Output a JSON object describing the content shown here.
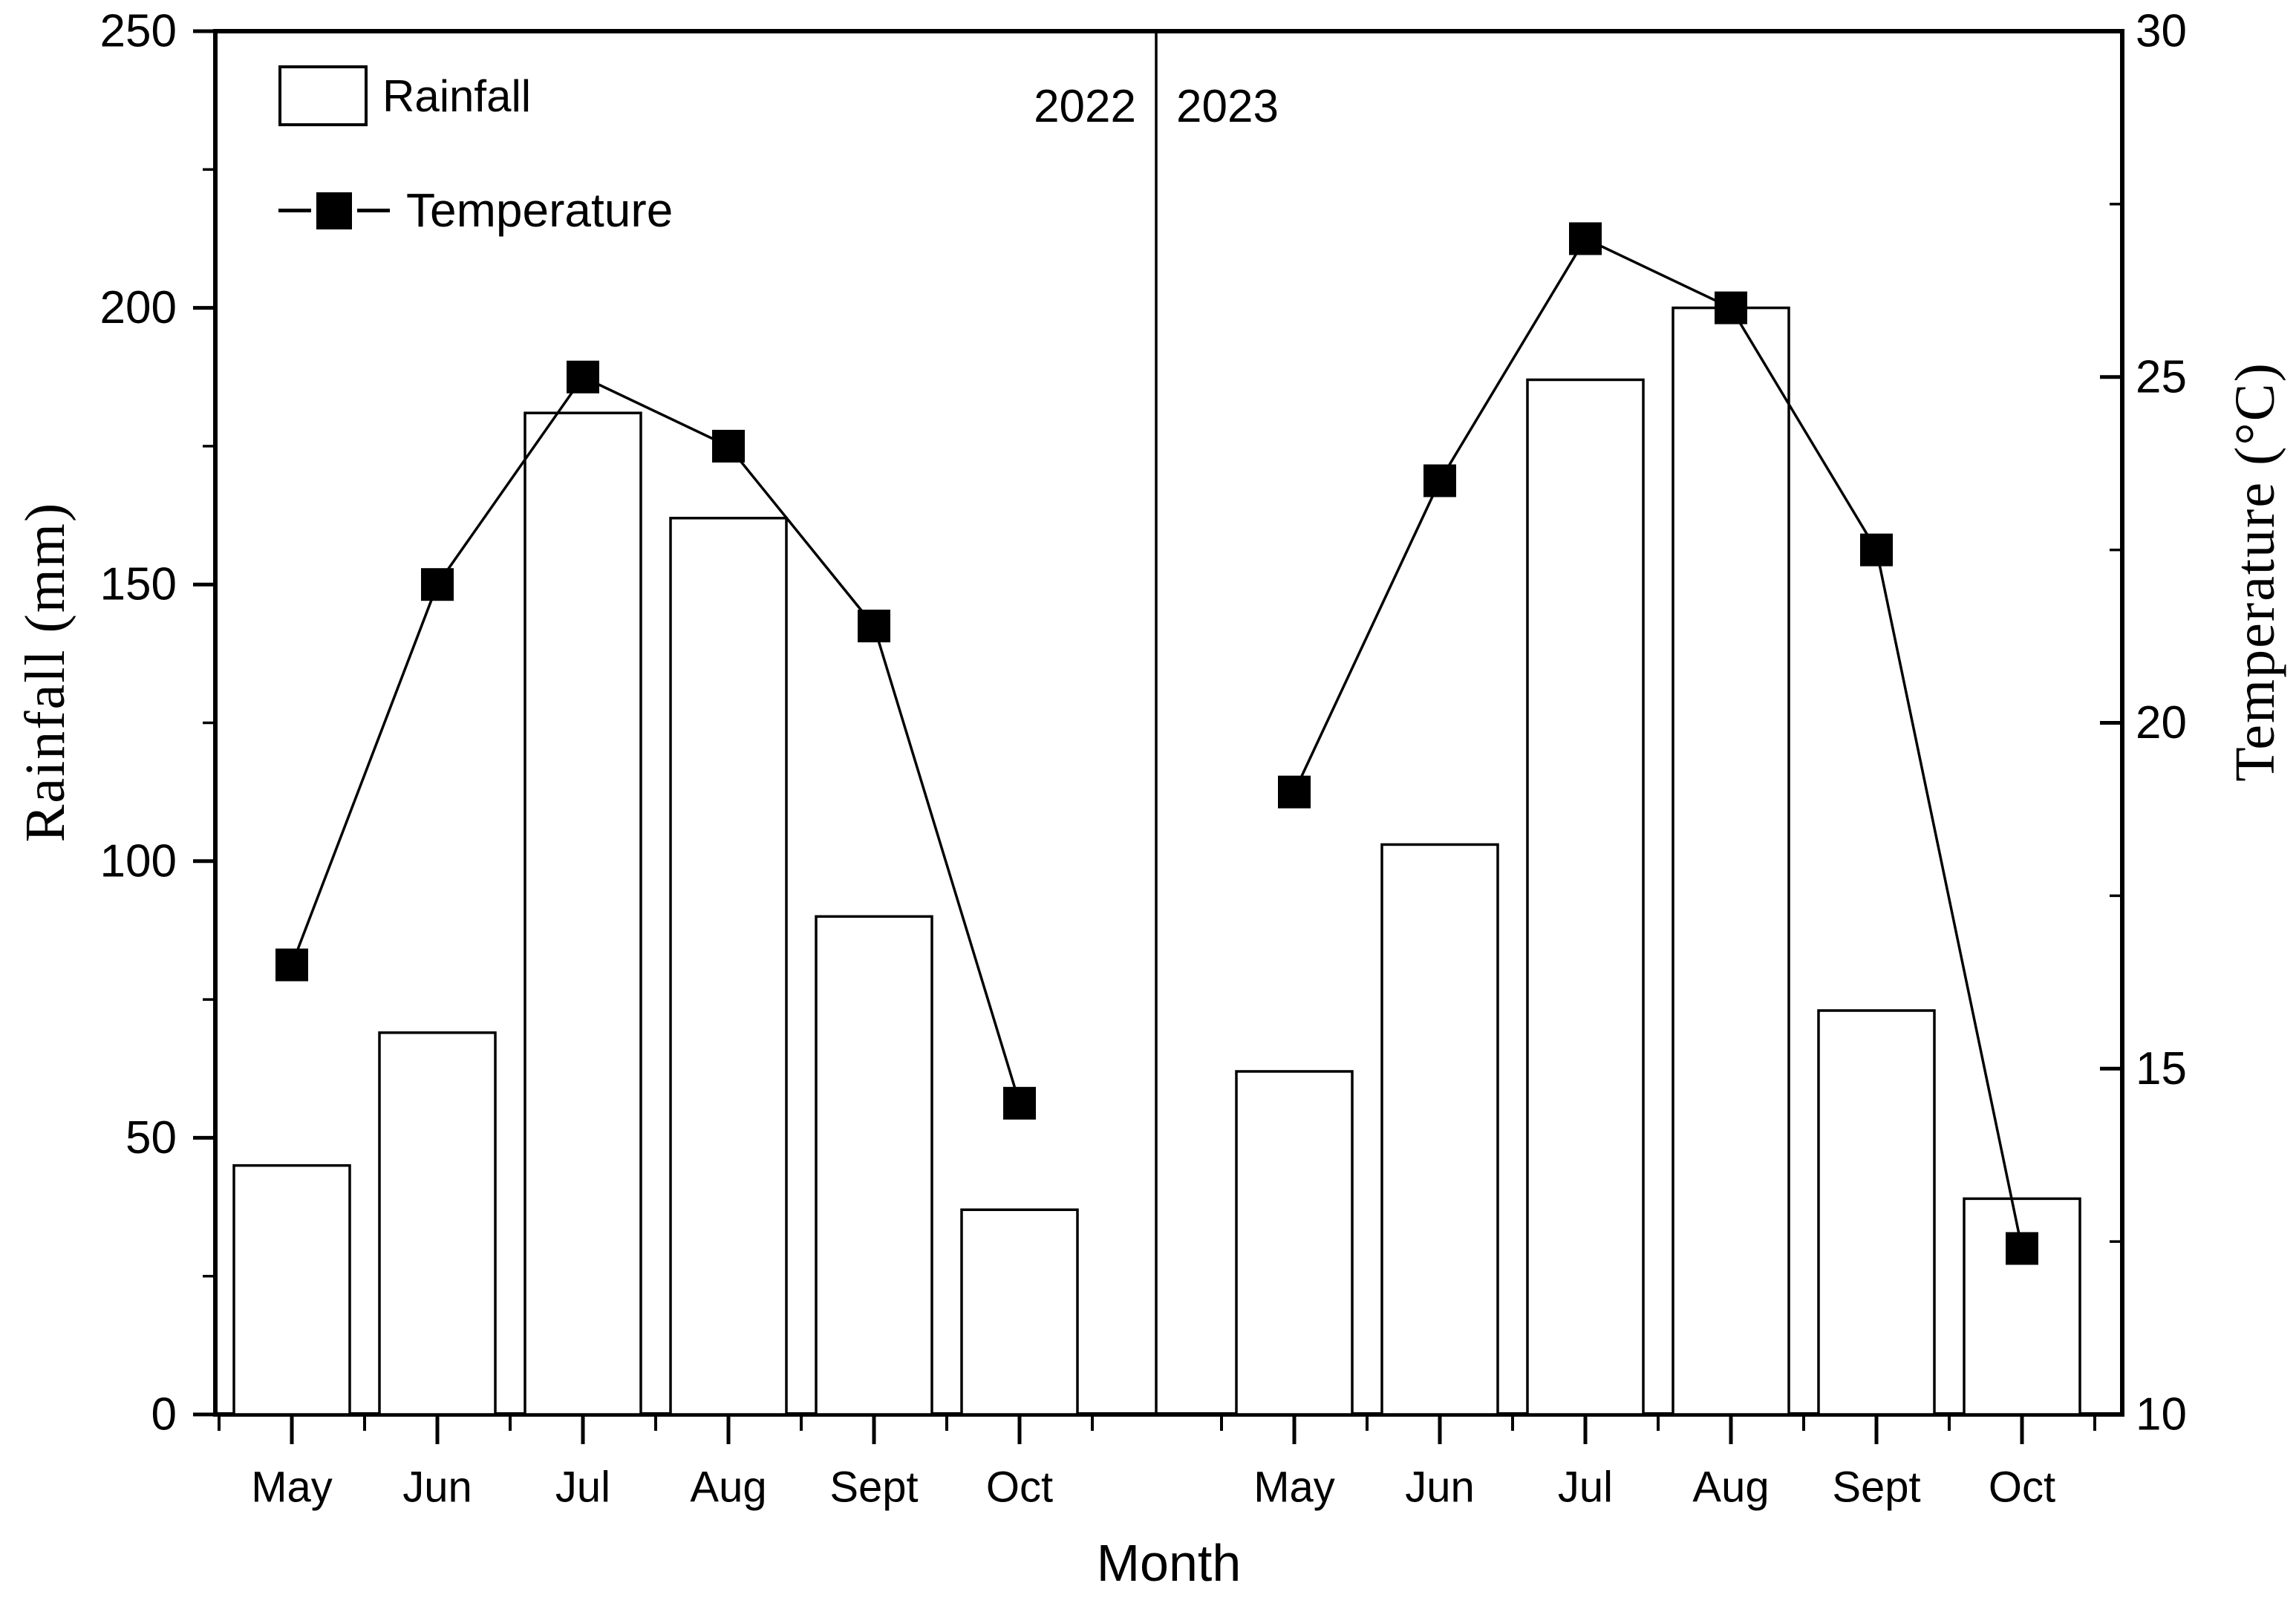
{
  "chart_data": {
    "type": "bar",
    "subtype": "bar-and-line-dual-axis",
    "title": "",
    "xlabel": "Month",
    "ylabel_left": "Rainfall (mm)",
    "ylabel_right": "Temperature (°C)",
    "ylim_left": [
      0,
      250
    ],
    "ylim_right": [
      10,
      30
    ],
    "yticks_left": [
      0,
      50,
      100,
      150,
      200,
      250
    ],
    "yticks_minor_left": [
      25,
      75,
      125,
      175,
      225
    ],
    "yticks_right": [
      10,
      15,
      20,
      25,
      30
    ],
    "yticks_minor_right": [
      12.5,
      17.5,
      22.5,
      27.5
    ],
    "grid": "off",
    "legend": [
      {
        "label": "Rainfall",
        "series_type": "bar"
      },
      {
        "label": "Temperature",
        "series_type": "line-square-marker"
      }
    ],
    "legend_position": "top-left-inside",
    "groups": [
      {
        "year": "2022",
        "categories": [
          "May",
          "Jun",
          "Jul",
          "Aug",
          "Sept",
          "Oct"
        ],
        "series": [
          {
            "name": "Rainfall",
            "axis": "left",
            "values": [
              45,
              69,
              181,
              162,
              90,
              37
            ]
          },
          {
            "name": "Temperature",
            "axis": "right",
            "values": [
              16.5,
              22.0,
              25.0,
              24.0,
              21.4,
              14.5
            ]
          }
        ]
      },
      {
        "year": "2023",
        "categories": [
          "May",
          "Jun",
          "Jul",
          "Aug",
          "Sept",
          "Oct"
        ],
        "series": [
          {
            "name": "Rainfall",
            "axis": "left",
            "values": [
              62,
              103,
              187,
              200,
              73,
              39
            ]
          },
          {
            "name": "Temperature",
            "axis": "right",
            "values": [
              19.0,
              23.5,
              27.0,
              26.0,
              22.5,
              12.4
            ]
          }
        ]
      }
    ],
    "colors": {
      "ink": "#000000",
      "background": "#ffffff",
      "bar_fill": "#ffffff",
      "bar_stroke": "#000000",
      "line_color": "#000000",
      "marker_color": "#000000"
    }
  }
}
